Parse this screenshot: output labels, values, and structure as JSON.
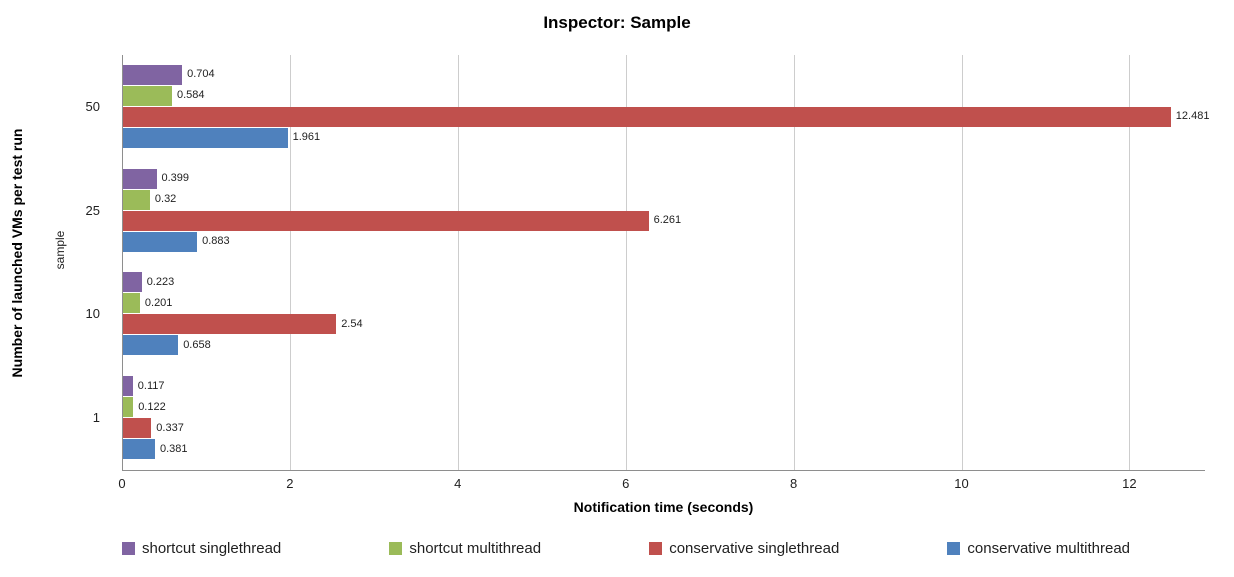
{
  "chart": {
    "title": "Inspector: Sample",
    "xlabel": "Notification time (seconds)",
    "ylabel_outer": "Number of launched  VMs per test run",
    "ylabel_inner": "sample"
  },
  "chart_data": {
    "type": "bar",
    "orientation": "horizontal",
    "title": "Inspector: Sample",
    "xlabel": "Notification time (seconds)",
    "ylabel": "Number of launched  VMs per test run",
    "ylabel_secondary": "sample",
    "categories": [
      "50",
      "25",
      "10",
      "1"
    ],
    "series": [
      {
        "name": "shortcut singlethread",
        "color": "#8064A2",
        "values": [
          0.704,
          0.399,
          0.223,
          0.117
        ],
        "labels": [
          "0.704",
          "0.399",
          "0.223",
          "0.117"
        ]
      },
      {
        "name": "shortcut multithread",
        "color": "#9BBB59",
        "values": [
          0.584,
          0.32,
          0.201,
          0.122
        ],
        "labels": [
          "0.584",
          "0.32",
          "0.201",
          "0.122"
        ]
      },
      {
        "name": "conservative singlethread",
        "color": "#C0504D",
        "values": [
          12.481,
          6.261,
          2.54,
          0.337
        ],
        "labels": [
          "12.481",
          "6.261",
          "2.54",
          "0.337"
        ]
      },
      {
        "name": "conservative multithread",
        "color": "#4F81BD",
        "values": [
          1.961,
          0.883,
          0.658,
          0.381
        ],
        "labels": [
          "1.961",
          "0.883",
          "0.658",
          "0.381"
        ]
      }
    ],
    "x_ticks": [
      0,
      2,
      4,
      6,
      8,
      10,
      12
    ],
    "xlim": [
      0,
      12.9
    ],
    "grid": true,
    "legend_position": "bottom"
  }
}
